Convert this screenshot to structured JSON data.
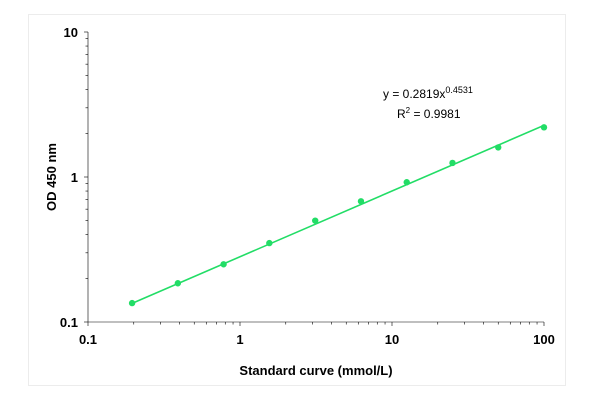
{
  "chart_data": {
    "type": "scatter",
    "title": "",
    "xlabel": "Standard curve (mmol/L)",
    "ylabel": "OD 450 nm",
    "xscale": "log",
    "yscale": "log",
    "xlim": [
      0.1,
      100
    ],
    "ylim": [
      0.1,
      10
    ],
    "xticks": [
      "0.1",
      "1",
      "10",
      "100"
    ],
    "yticks": [
      "0.1",
      "1",
      "10"
    ],
    "grid": false,
    "marker_color": "#22dd66",
    "line_color": "#22dd66",
    "series": [
      {
        "x": [
          0.195,
          0.39,
          0.78,
          1.56,
          3.125,
          6.25,
          12.5,
          25,
          50,
          100
        ],
        "y": [
          0.135,
          0.185,
          0.25,
          0.35,
          0.5,
          0.68,
          0.92,
          1.25,
          1.6,
          2.2
        ]
      }
    ],
    "fit": {
      "equation_prefix": "y = 0.2819x",
      "equation_exponent": "0.4531",
      "r2_prefix": "R",
      "r2_sup": "2",
      "r2_value": " = 0.9981",
      "a": 0.2819,
      "b": 0.4531
    }
  }
}
